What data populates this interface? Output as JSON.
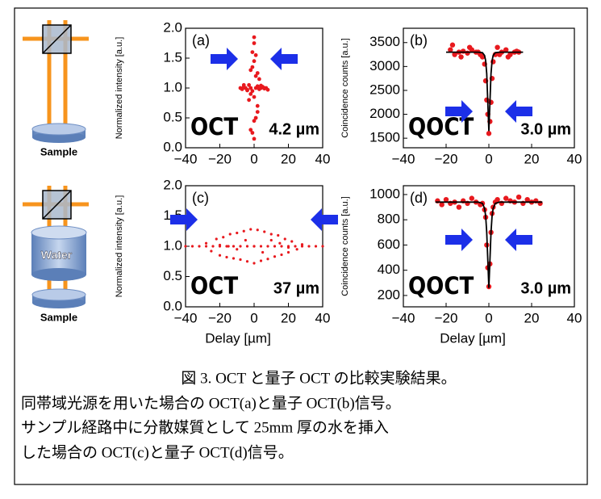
{
  "chart_data": [
    {
      "type": "scatter",
      "label": "(a)",
      "annotations": [
        "OCT",
        "4.2 µm"
      ],
      "ylabel": "Normalized intensity [a.u.]",
      "xlim": [
        -40,
        40
      ],
      "ylim": [
        0,
        2
      ],
      "xticks": [
        {
          "value": -40,
          "label": "−40"
        },
        {
          "value": -20,
          "label": "−20"
        },
        0,
        20,
        40
      ],
      "yticks": [
        {
          "value": 0,
          "label": "0.0"
        },
        0.5,
        {
          "value": 1,
          "label": "1.0"
        },
        1.5,
        {
          "value": 2,
          "label": "2.0"
        }
      ],
      "series": [
        {
          "color": "#e8191e",
          "style": "markers",
          "x": [
            -8,
            -7,
            -6,
            -5,
            -4,
            -3,
            -2,
            -1,
            1,
            2,
            3,
            4,
            5,
            6,
            7,
            8,
            -6,
            -4,
            -2,
            2,
            4,
            6,
            0,
            0,
            -1,
            1,
            0,
            -1,
            1,
            0,
            -2,
            2,
            -3,
            3,
            0,
            1,
            -1,
            0,
            2,
            -2
          ],
          "values": [
            1.0,
            0.98,
            1.02,
            1.0,
            0.97,
            1.05,
            1.0,
            0.95,
            1.0,
            1.03,
            0.98,
            1.0,
            1.02,
            0.99,
            1.0,
            0.97,
            1.05,
            0.96,
            1.3,
            0.7,
            1.04,
            1.0,
            1.85,
            1.75,
            1.6,
            1.55,
            1.45,
            1.35,
            1.2,
            0.15,
            0.3,
            0.6,
            0.8,
            1.15,
            0.45,
            0.5,
            0.25,
            0.85,
            1.25,
            0.9
          ]
        }
      ]
    },
    {
      "type": "scatter",
      "label": "(b)",
      "annotations": [
        "QOCT",
        "3.0 µm"
      ],
      "ylabel": "Coincidence counts [a.u.]",
      "xlim": [
        -40,
        40
      ],
      "ylim": [
        1300,
        3800
      ],
      "xticks": [
        {
          "value": -40,
          "label": "−40"
        },
        {
          "value": -20,
          "label": "−20"
        },
        0,
        20,
        40
      ],
      "yticks": [
        1500,
        2000,
        2500,
        3000,
        3500
      ],
      "series": [
        {
          "color": "#e8191e",
          "style": "markers",
          "x": [
            -18,
            -16,
            -14,
            -12,
            -10,
            -8,
            -6,
            -4,
            -3,
            -2,
            -1.5,
            -1,
            -0.5,
            0,
            0.5,
            1,
            1.5,
            2,
            3,
            4,
            6,
            8,
            10,
            12,
            14,
            -17,
            -13,
            -9,
            -5,
            5,
            9,
            13
          ],
          "values": [
            3350,
            3250,
            3300,
            3320,
            3280,
            3350,
            3300,
            3250,
            3200,
            3050,
            2700,
            2300,
            2000,
            1600,
            1850,
            2250,
            2750,
            3100,
            3250,
            3400,
            3300,
            3350,
            3250,
            3300,
            3300,
            3450,
            3200,
            3400,
            3300,
            3250,
            3200,
            3320
          ]
        },
        {
          "color": "#000000",
          "style": "line",
          "x": [
            -20,
            -5,
            -3,
            -2,
            -1.5,
            -1,
            -0.5,
            0,
            0.5,
            1,
            1.5,
            2,
            3,
            5,
            16
          ],
          "values": [
            3300,
            3300,
            3290,
            3230,
            3120,
            2850,
            2250,
            1650,
            2250,
            2850,
            3120,
            3230,
            3290,
            3300,
            3300
          ]
        }
      ]
    },
    {
      "type": "scatter",
      "label": "(c)",
      "annotations": [
        "OCT",
        "37 µm"
      ],
      "ylabel": "Normalized intensity [a.u.]",
      "xlabel": "Delay [µm]",
      "xlim": [
        -40,
        40
      ],
      "ylim": [
        0,
        2
      ],
      "xticks": [
        {
          "value": -40,
          "label": "−40"
        },
        {
          "value": -20,
          "label": "−20"
        },
        0,
        20,
        40
      ],
      "yticks": [
        {
          "value": 0,
          "label": "0.0"
        },
        0.5,
        {
          "value": 1,
          "label": "1.0"
        },
        1.5,
        {
          "value": 2,
          "label": "2.0"
        }
      ],
      "series": [
        {
          "color": "#e8191e",
          "style": "markers",
          "x": [
            -40,
            -36,
            -32,
            -28,
            -24,
            -20,
            -16,
            -12,
            -8,
            -4,
            0,
            4,
            8,
            12,
            16,
            20,
            24,
            28,
            32,
            36,
            40,
            -28,
            -25,
            -22,
            -20,
            -18,
            -16,
            -14,
            -12,
            -10,
            -8,
            -6,
            -4,
            -2,
            0,
            2,
            4,
            6,
            8,
            10,
            12,
            14,
            16,
            18,
            20,
            22,
            25,
            28,
            -15,
            -5,
            5,
            15,
            -10,
            10,
            0,
            -20,
            20
          ],
          "values": [
            1,
            1,
            1,
            1,
            1,
            1,
            1,
            1,
            1,
            1,
            1,
            1,
            1,
            1,
            1,
            1,
            1,
            1,
            1,
            1,
            1,
            1.05,
            0.92,
            1.12,
            0.85,
            1.15,
            0.82,
            1.2,
            0.8,
            1.22,
            0.78,
            1.25,
            0.75,
            1.28,
            0.72,
            1.27,
            0.76,
            1.24,
            0.79,
            1.2,
            0.83,
            1.18,
            0.86,
            1.12,
            0.9,
            1.08,
            0.95,
            1.03,
            1.0,
            1.1,
            0.9,
            1.05,
            0.95,
            1.1,
            1.0,
            1.02,
            0.98
          ]
        }
      ]
    },
    {
      "type": "scatter",
      "label": "(d)",
      "annotations": [
        "QOCT",
        "3.0 µm"
      ],
      "ylabel": "Coincidence counts [a.u.]",
      "xlabel": "Delay [µm]",
      "xlim": [
        -40,
        40
      ],
      "ylim": [
        110,
        1070
      ],
      "xticks": [
        {
          "value": -40,
          "label": "−40"
        },
        {
          "value": -20,
          "label": "−20"
        },
        0,
        20,
        40
      ],
      "yticks": [
        200,
        400,
        600,
        800,
        1000
      ],
      "series": [
        {
          "color": "#e8191e",
          "style": "markers",
          "x": [
            -24,
            -22,
            -20,
            -18,
            -16,
            -14,
            -12,
            -10,
            -8,
            -6,
            -4,
            -3,
            -2,
            -1.5,
            -1,
            -0.5,
            0,
            0.5,
            1,
            1.5,
            2,
            3,
            4,
            6,
            8,
            10,
            12,
            14,
            16,
            18,
            20,
            22,
            24
          ],
          "values": [
            950,
            920,
            960,
            930,
            940,
            900,
            950,
            930,
            970,
            940,
            920,
            930,
            880,
            820,
            600,
            420,
            270,
            450,
            700,
            850,
            900,
            940,
            960,
            930,
            970,
            950,
            940,
            980,
            930,
            960,
            940,
            950,
            930
          ]
        },
        {
          "color": "#000000",
          "style": "line",
          "x": [
            -25,
            -5,
            -3,
            -2,
            -1.5,
            -1,
            -0.5,
            0,
            0.5,
            1,
            1.5,
            2,
            3,
            5,
            25
          ],
          "values": [
            940,
            940,
            930,
            890,
            830,
            700,
            480,
            260,
            480,
            700,
            830,
            890,
            930,
            940,
            940
          ]
        }
      ]
    }
  ],
  "diagram_labels": [
    "Sample",
    "Water",
    "Sample"
  ],
  "caption": [
    "図 3. OCT と量子 OCT の比較実験結果。",
    "同帯域光源を用いた場合の OCT(a)と量子 OCT(b)信号。",
    "サンプル経路中に分散媒質として 25mm 厚の水を挿入",
    "した場合の OCT(c)と量子 OCT(d)信号。"
  ]
}
